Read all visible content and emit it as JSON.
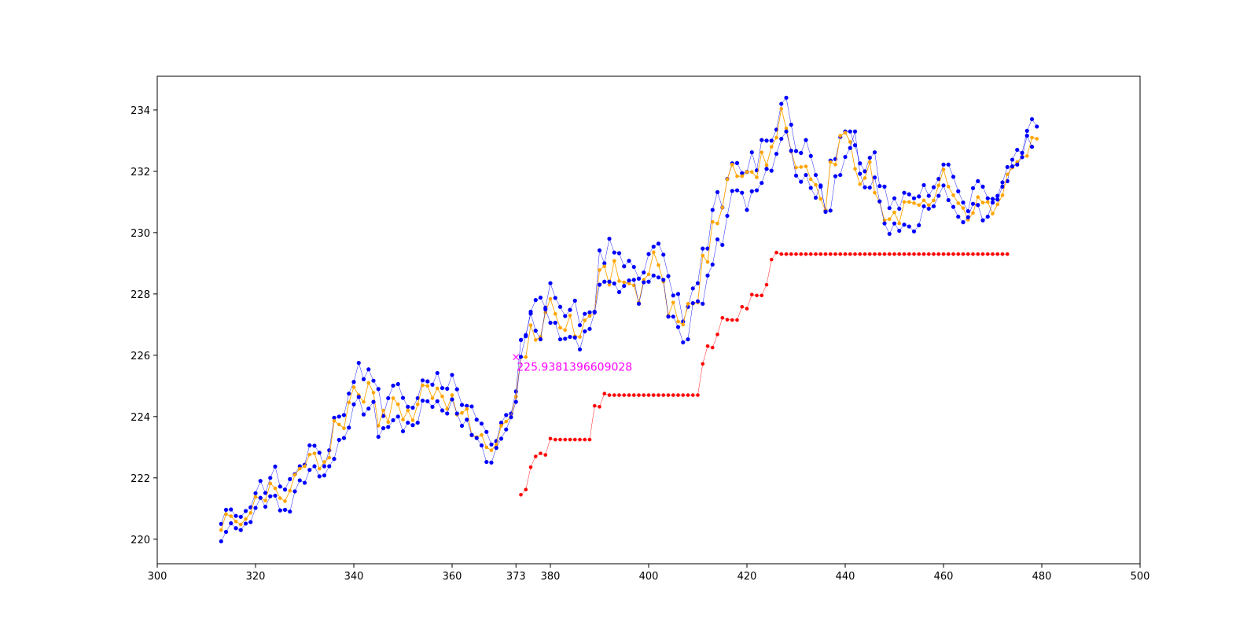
{
  "colors": {
    "high_low": "#0000ff",
    "close": "#ffa500",
    "stop": "#ff0000",
    "annotation": "#ff00ff",
    "axis": "#000000",
    "background": "#ffffff"
  },
  "chart_data": {
    "type": "line",
    "title": "",
    "xlabel": "",
    "ylabel": "",
    "xlim": [
      300,
      500
    ],
    "ylim": [
      219.2,
      235.1
    ],
    "x_ticks": [
      300,
      320,
      340,
      360,
      373,
      380,
      400,
      420,
      440,
      460,
      480,
      500
    ],
    "y_ticks": [
      220,
      222,
      224,
      226,
      228,
      230,
      232,
      234
    ],
    "grid": false,
    "annotation": {
      "x": 373,
      "y": 225.9381396609028,
      "label": "225.9381396609028",
      "marker": "x"
    },
    "series": [
      {
        "role": "upper",
        "x_start": 313,
        "values": [
          220.5,
          220.96,
          220.97,
          220.76,
          220.73,
          220.92,
          221.04,
          221.5,
          221.9,
          221.51,
          222.0,
          222.37,
          221.72,
          221.62,
          221.96,
          222.12,
          222.38,
          222.43,
          223.06,
          223.05,
          222.82,
          222.38,
          222.9,
          223.96,
          224.0,
          224.05,
          224.75,
          225.13,
          225.75,
          225.22,
          225.54,
          225.17,
          224.9,
          224.02,
          224.6,
          225.01,
          225.06,
          224.61,
          224.32,
          224.29,
          224.6,
          225.18,
          225.15,
          225.04,
          225.42,
          224.93,
          224.91,
          225.36,
          224.89,
          224.38,
          224.35,
          224.33,
          223.9,
          223.77,
          223.5,
          223.09,
          223.2,
          223.8,
          224.05,
          224.1,
          224.82,
          226.5,
          226.62,
          227.42,
          227.8,
          227.88,
          227.55,
          228.35,
          227.87,
          227.58,
          227.28,
          227.48,
          227.78,
          226.98,
          227.35,
          227.4,
          227.42,
          229.42,
          229.0,
          229.8,
          229.35,
          229.33,
          228.9,
          229.08,
          228.88,
          228.5,
          228.7,
          229.3,
          229.54,
          229.64,
          229.28,
          228.58,
          227.95,
          228.0,
          227.1,
          227.58,
          228.18,
          228.35,
          229.48,
          229.48,
          230.74,
          231.32,
          230.82,
          231.75,
          232.26,
          232.27,
          231.94,
          231.98,
          232.62,
          232.03,
          233.02,
          233.0,
          233.0,
          233.36,
          234.2,
          234.4,
          233.52,
          232.66,
          232.6,
          233.02,
          232.5,
          231.88,
          231.5,
          230.72,
          232.35,
          232.4,
          233.12,
          233.3,
          233.3,
          232.85,
          232.26,
          232.0,
          232.44,
          232.62,
          231.52,
          231.5,
          230.8,
          231.12,
          230.78,
          231.3,
          231.25,
          231.12,
          231.18,
          231.55,
          231.2,
          231.48,
          231.75,
          232.22,
          232.22,
          231.82,
          231.35,
          230.98,
          230.7,
          231.45,
          231.68,
          231.5,
          231.12,
          231.1,
          231.08,
          231.5,
          231.68,
          232.38,
          232.7,
          232.6,
          233.32,
          233.7,
          233.46
        ]
      },
      {
        "role": "close",
        "x_start": 313,
        "values": [
          220.3,
          220.82,
          220.75,
          220.58,
          220.48,
          220.66,
          220.86,
          221.38,
          221.34,
          221.26,
          221.82,
          221.66,
          221.34,
          221.24,
          221.58,
          222.1,
          222.3,
          222.38,
          222.76,
          222.8,
          222.3,
          222.52,
          222.66,
          223.86,
          223.74,
          223.62,
          224.46,
          224.96,
          224.7,
          224.48,
          225.1,
          224.78,
          223.7,
          224.2,
          223.82,
          224.6,
          224.4,
          223.9,
          224.2,
          223.88,
          224.4,
          225.02,
          225.0,
          224.6,
          224.92,
          224.66,
          224.25,
          224.7,
          224.06,
          224.12,
          224.25,
          223.38,
          223.33,
          223.4,
          223.0,
          222.9,
          223.08,
          223.7,
          223.84,
          224.0,
          224.65,
          225.94,
          225.94,
          226.98,
          226.5,
          226.6,
          227.4,
          227.84,
          227.35,
          226.9,
          226.82,
          227.3,
          226.62,
          226.6,
          227.14,
          227.28,
          227.38,
          228.78,
          228.9,
          228.3,
          229.08,
          228.42,
          228.38,
          228.34,
          228.28,
          227.72,
          228.46,
          228.64,
          229.36,
          228.94,
          228.4,
          227.3,
          227.72,
          227.1,
          227.0,
          227.68,
          227.68,
          227.72,
          229.25,
          229.04,
          230.35,
          230.3,
          230.82,
          231.74,
          232.22,
          231.84,
          231.84,
          231.98,
          231.98,
          231.8,
          232.62,
          232.2,
          232.8,
          233.1,
          234.04,
          233.4,
          232.64,
          232.12,
          232.14,
          232.16,
          231.74,
          231.56,
          231.1,
          230.72,
          232.3,
          232.22,
          233.16,
          233.26,
          232.96,
          232.08,
          231.58,
          231.78,
          232.3,
          231.3,
          231.0,
          230.4,
          230.44,
          230.66,
          230.3,
          231.0,
          231.0,
          230.96,
          230.9,
          231.05,
          230.9,
          231.05,
          231.54,
          232.06,
          231.5,
          231.22,
          230.96,
          230.8,
          230.42,
          230.64,
          231.16,
          230.98,
          231.0,
          230.62,
          230.92,
          231.22,
          231.9,
          232.12,
          232.3,
          232.48,
          232.5,
          233.1,
          233.06
        ]
      },
      {
        "role": "lower",
        "x_start": 313,
        "values": [
          219.93,
          220.24,
          220.52,
          220.36,
          220.3,
          220.51,
          220.56,
          221.02,
          221.35,
          221.06,
          221.4,
          221.42,
          220.94,
          220.96,
          220.9,
          221.56,
          221.92,
          221.84,
          222.26,
          222.38,
          222.05,
          222.08,
          222.38,
          222.62,
          223.24,
          223.3,
          223.64,
          224.4,
          224.64,
          224.07,
          224.26,
          224.48,
          223.34,
          223.62,
          223.66,
          223.88,
          224.0,
          223.52,
          223.8,
          223.72,
          223.8,
          224.52,
          224.5,
          224.32,
          224.5,
          224.2,
          224.1,
          224.56,
          224.1,
          223.7,
          223.9,
          223.4,
          223.3,
          223.06,
          222.52,
          222.5,
          222.98,
          223.28,
          223.58,
          223.98,
          224.48,
          225.95,
          226.66,
          227.36,
          226.8,
          226.52,
          227.5,
          227.06,
          227.06,
          226.52,
          226.54,
          226.6,
          226.58,
          226.19,
          226.78,
          226.86,
          227.4,
          228.3,
          228.4,
          228.4,
          228.34,
          228.06,
          228.26,
          228.44,
          228.46,
          227.68,
          228.38,
          228.4,
          228.6,
          228.54,
          228.46,
          227.26,
          227.26,
          226.92,
          226.42,
          226.52,
          227.7,
          227.76,
          227.68,
          228.6,
          228.96,
          229.78,
          229.6,
          230.55,
          231.36,
          231.38,
          231.3,
          230.74,
          231.35,
          231.38,
          231.62,
          232.08,
          232.02,
          232.57,
          233.06,
          233.3,
          232.67,
          231.86,
          231.66,
          231.88,
          231.46,
          231.14,
          231.54,
          230.68,
          230.72,
          231.84,
          231.88,
          232.47,
          232.76,
          233.3,
          231.92,
          231.48,
          231.47,
          231.8,
          231.02,
          230.3,
          229.96,
          230.3,
          230.06,
          230.26,
          230.2,
          230.04,
          230.24,
          230.86,
          230.78,
          230.86,
          231.2,
          231.54,
          231.06,
          230.84,
          230.52,
          230.34,
          230.5,
          230.94,
          230.9,
          230.4,
          230.52,
          230.98,
          231.2,
          231.64,
          232.14,
          232.16,
          232.22,
          232.46,
          233.16,
          232.8
        ]
      },
      {
        "role": "stop",
        "x_start": 374,
        "values": [
          221.45,
          221.62,
          222.35,
          222.7,
          222.8,
          222.75,
          223.28,
          223.25,
          223.25,
          223.25,
          223.25,
          223.25,
          223.25,
          223.25,
          223.25,
          224.35,
          224.32,
          224.75,
          224.7,
          224.7,
          224.7,
          224.7,
          224.7,
          224.7,
          224.7,
          224.7,
          224.7,
          224.7,
          224.7,
          224.7,
          224.7,
          224.7,
          224.7,
          224.7,
          224.7,
          224.7,
          224.7,
          225.72,
          226.3,
          226.25,
          226.68,
          227.22,
          227.16,
          227.15,
          227.15,
          227.58,
          227.52,
          227.98,
          227.95,
          227.95,
          228.3,
          229.12,
          229.35,
          229.3,
          229.3,
          229.3,
          229.3,
          229.3,
          229.3,
          229.3,
          229.3,
          229.3,
          229.3,
          229.3,
          229.3,
          229.3,
          229.3,
          229.3,
          229.3,
          229.3,
          229.3,
          229.3,
          229.3,
          229.3,
          229.3,
          229.3,
          229.3,
          229.3,
          229.3,
          229.3,
          229.3,
          229.3,
          229.3,
          229.3,
          229.3,
          229.3,
          229.3,
          229.3,
          229.3,
          229.3,
          229.3,
          229.3,
          229.3,
          229.3,
          229.3,
          229.3,
          229.3,
          229.3,
          229.3,
          229.3
        ]
      }
    ]
  }
}
